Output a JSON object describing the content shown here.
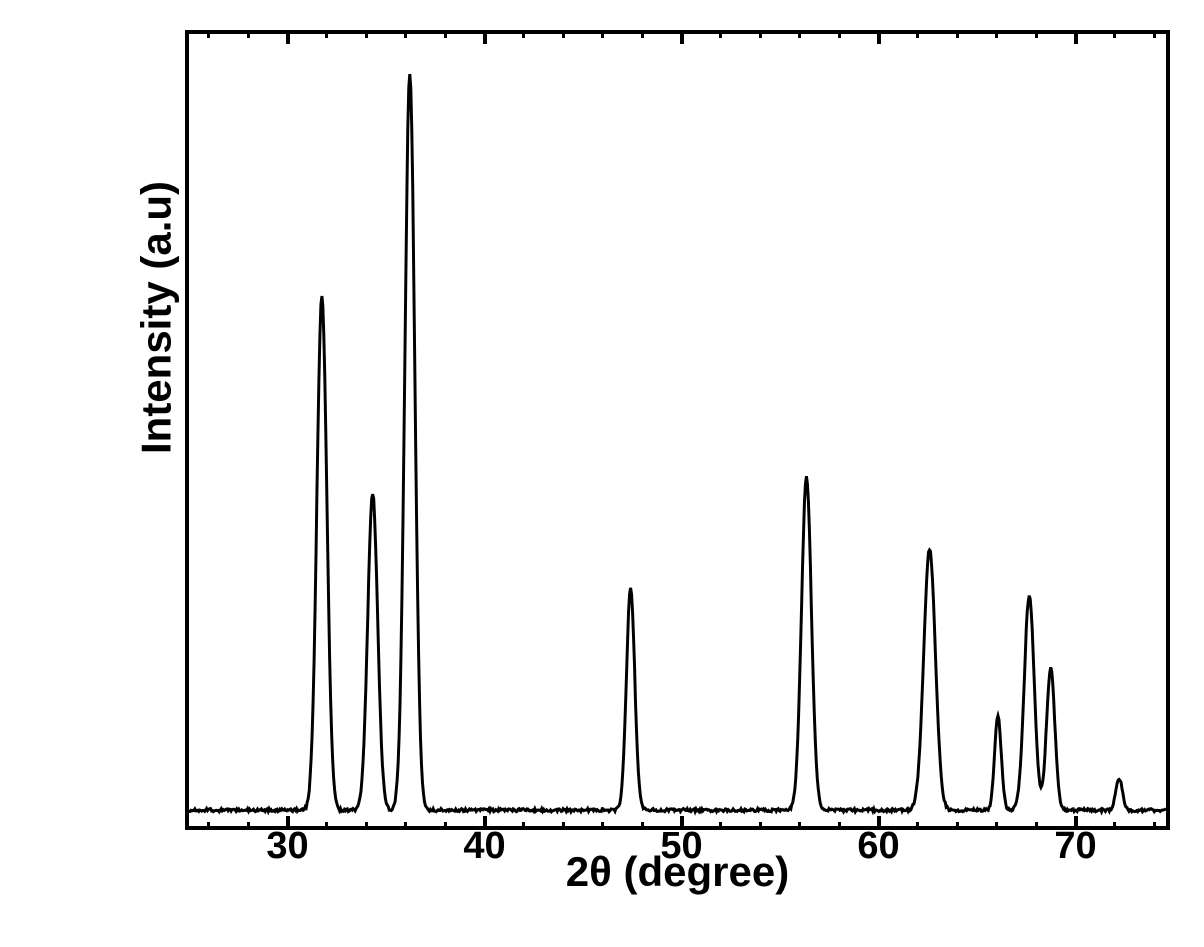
{
  "xrd_chart": {
    "type": "line",
    "xlabel": "2θ (degree)",
    "ylabel": "Intensity (a.u)",
    "xlim": [
      25,
      75
    ],
    "ylim": [
      0,
      100
    ],
    "x_major_ticks": [
      30,
      40,
      50,
      60,
      70
    ],
    "x_minor_tick_step": 2,
    "background_color": "#ffffff",
    "line_color": "#000000",
    "border_color": "#000000",
    "border_width": 4,
    "line_width": 3,
    "label_fontsize": 42,
    "tick_fontsize": 38,
    "font_weight": "bold",
    "baseline_y": 2,
    "peaks": [
      {
        "x": 31.8,
        "intensity": 65,
        "width": 0.6
      },
      {
        "x": 34.4,
        "intensity": 40,
        "width": 0.6
      },
      {
        "x": 36.3,
        "intensity": 93,
        "width": 0.6
      },
      {
        "x": 47.6,
        "intensity": 28,
        "width": 0.5
      },
      {
        "x": 56.6,
        "intensity": 42,
        "width": 0.6
      },
      {
        "x": 62.9,
        "intensity": 33,
        "width": 0.7
      },
      {
        "x": 66.4,
        "intensity": 12,
        "width": 0.4
      },
      {
        "x": 68.0,
        "intensity": 27,
        "width": 0.6
      },
      {
        "x": 69.1,
        "intensity": 18,
        "width": 0.5
      },
      {
        "x": 72.6,
        "intensity": 4,
        "width": 0.4
      }
    ]
  }
}
